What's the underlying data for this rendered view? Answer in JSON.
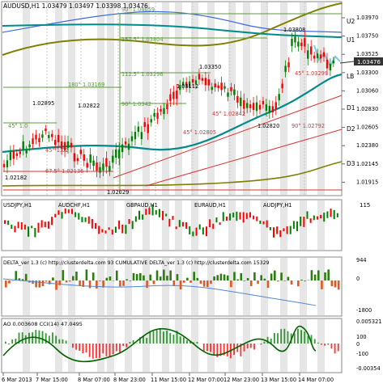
{
  "main": {
    "symbol_header": "AUDUSD,H1  1.03479 1.03497 1.03398 1.03476",
    "current_price": "1.03476",
    "price_scale": [
      "1.03970",
      "1.03750",
      "1.03525",
      "1.03300",
      "1.03060",
      "1.02830",
      "1.02605",
      "1.02380",
      "1.02145",
      "1.01915"
    ],
    "bands": [
      "U2",
      "U1",
      "LB",
      "D1",
      "D2",
      "D3"
    ],
    "annotations": [
      {
        "text": "90° 1.04059"
      },
      {
        "text": "157.5° 1.03804"
      },
      {
        "text": "1.03808"
      },
      {
        "text": "1.03350"
      },
      {
        "text": "112.5° 1.03296"
      },
      {
        "text": "45° 1.03299"
      },
      {
        "text": "180° 1.03169"
      },
      {
        "text": "1.03112"
      },
      {
        "text": "90° 1.0342"
      },
      {
        "text": "1.02895"
      },
      {
        "text": "1.02822"
      },
      {
        "text": "45° 1.02842"
      },
      {
        "text": "45° 1.02805"
      },
      {
        "text": "1.02820"
      },
      {
        "text": "90° 1.02792"
      },
      {
        "text": "45° 1.02"
      },
      {
        "text": "45° 1.0"
      },
      {
        "text": "67.5° 1.02136"
      },
      {
        "text": "1.02182"
      },
      {
        "text": "1.02029"
      }
    ]
  },
  "mini_charts": {
    "labels": [
      "USDJPY,H1",
      "AUDCHF,H1",
      "GBPAUD,H1",
      "EURAUD,H1",
      "AUDJPY,H1"
    ],
    "scale_label": "115"
  },
  "delta": {
    "header": "DELTA_ver 1.3 (c) http://clusterdelta.com  93  CUMULATIVE DELTA_ver 1.3 (c) http://clusterdelta.com  15329",
    "scale": [
      "944",
      "0",
      "-1800"
    ]
  },
  "oscillator": {
    "header": "AO 0.003608  CCI(14) 47.0495",
    "scale": [
      "0.005321",
      "100",
      "0",
      "-100",
      "-0.00354"
    ]
  },
  "time_axis": [
    "6 Mar 2013",
    "7 Mar 15:00",
    "8 Mar 07:00",
    "8 Mar 23:00",
    "11 Mar 15:00",
    "12 Mar 07:00",
    "12 Mar 23:00",
    "13 Mar 15:00",
    "14 Mar 07:00"
  ],
  "colors": {
    "up": "#008000",
    "down": "#ff0000",
    "teal_ma": "#008b8b",
    "olive_ma": "#808000",
    "blue_ma": "#4169e1",
    "fib": "#5b9b3a",
    "delta_pos": "#2e7d12",
    "delta_neg": "#e8551c",
    "cci": "#006400"
  }
}
